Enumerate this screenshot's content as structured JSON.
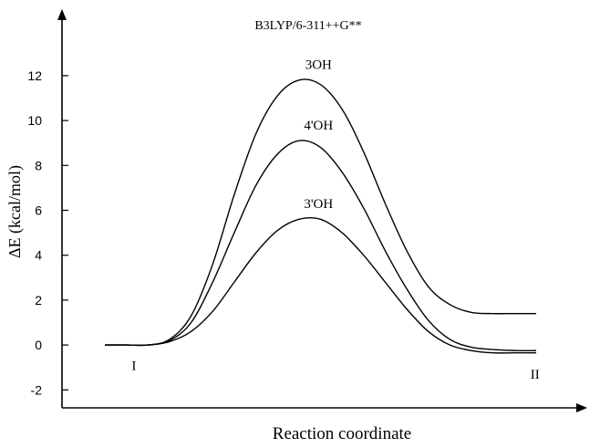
{
  "chart_data": {
    "type": "line",
    "title": "B3LYP/6-311++G**",
    "xlabel": "Reaction coordinate",
    "ylabel": "ΔE (kcal/mol)",
    "ylim": [
      -2.8,
      14.8
    ],
    "yticks": [
      -2,
      0,
      2,
      4,
      6,
      8,
      10,
      12
    ],
    "grid": false,
    "x_range": [
      0,
      1
    ],
    "point_labels": [
      {
        "text": "I",
        "x": 0.04,
        "y": -0.9
      },
      {
        "text": "II",
        "x": 0.97,
        "y": -1.3
      }
    ],
    "series": [
      {
        "name": "3OH",
        "label_x": 0.47,
        "label_y": 12.5,
        "x": [
          0.0,
          0.05,
          0.1,
          0.15,
          0.2,
          0.25,
          0.3,
          0.35,
          0.4,
          0.45,
          0.5,
          0.55,
          0.6,
          0.65,
          0.7,
          0.75,
          0.8,
          0.85,
          0.9,
          0.95,
          1.0
        ],
        "y": [
          0.0,
          0.0,
          0.0,
          0.25,
          1.3,
          3.6,
          6.7,
          9.4,
          11.1,
          11.8,
          11.6,
          10.5,
          8.6,
          6.3,
          4.2,
          2.6,
          1.8,
          1.45,
          1.4,
          1.4,
          1.4
        ]
      },
      {
        "name": "4'OH",
        "label_x": 0.47,
        "label_y": 9.8,
        "x": [
          0.0,
          0.05,
          0.1,
          0.15,
          0.2,
          0.25,
          0.3,
          0.35,
          0.4,
          0.45,
          0.5,
          0.55,
          0.6,
          0.65,
          0.7,
          0.75,
          0.8,
          0.85,
          0.9,
          0.95,
          1.0
        ],
        "y": [
          0.0,
          0.0,
          0.0,
          0.2,
          1.0,
          2.8,
          5.0,
          7.1,
          8.5,
          9.1,
          8.8,
          7.7,
          6.1,
          4.2,
          2.5,
          1.1,
          0.25,
          -0.1,
          -0.2,
          -0.25,
          -0.25
        ]
      },
      {
        "name": "3'OH",
        "label_x": 0.47,
        "label_y": 6.3,
        "x": [
          0.0,
          0.05,
          0.1,
          0.15,
          0.2,
          0.25,
          0.3,
          0.35,
          0.4,
          0.45,
          0.5,
          0.55,
          0.6,
          0.65,
          0.7,
          0.75,
          0.8,
          0.85,
          0.9,
          0.95,
          1.0
        ],
        "y": [
          0.0,
          0.0,
          0.0,
          0.15,
          0.6,
          1.5,
          2.8,
          4.1,
          5.1,
          5.6,
          5.6,
          5.0,
          4.0,
          2.8,
          1.6,
          0.6,
          0.0,
          -0.25,
          -0.35,
          -0.35,
          -0.35
        ]
      }
    ]
  }
}
